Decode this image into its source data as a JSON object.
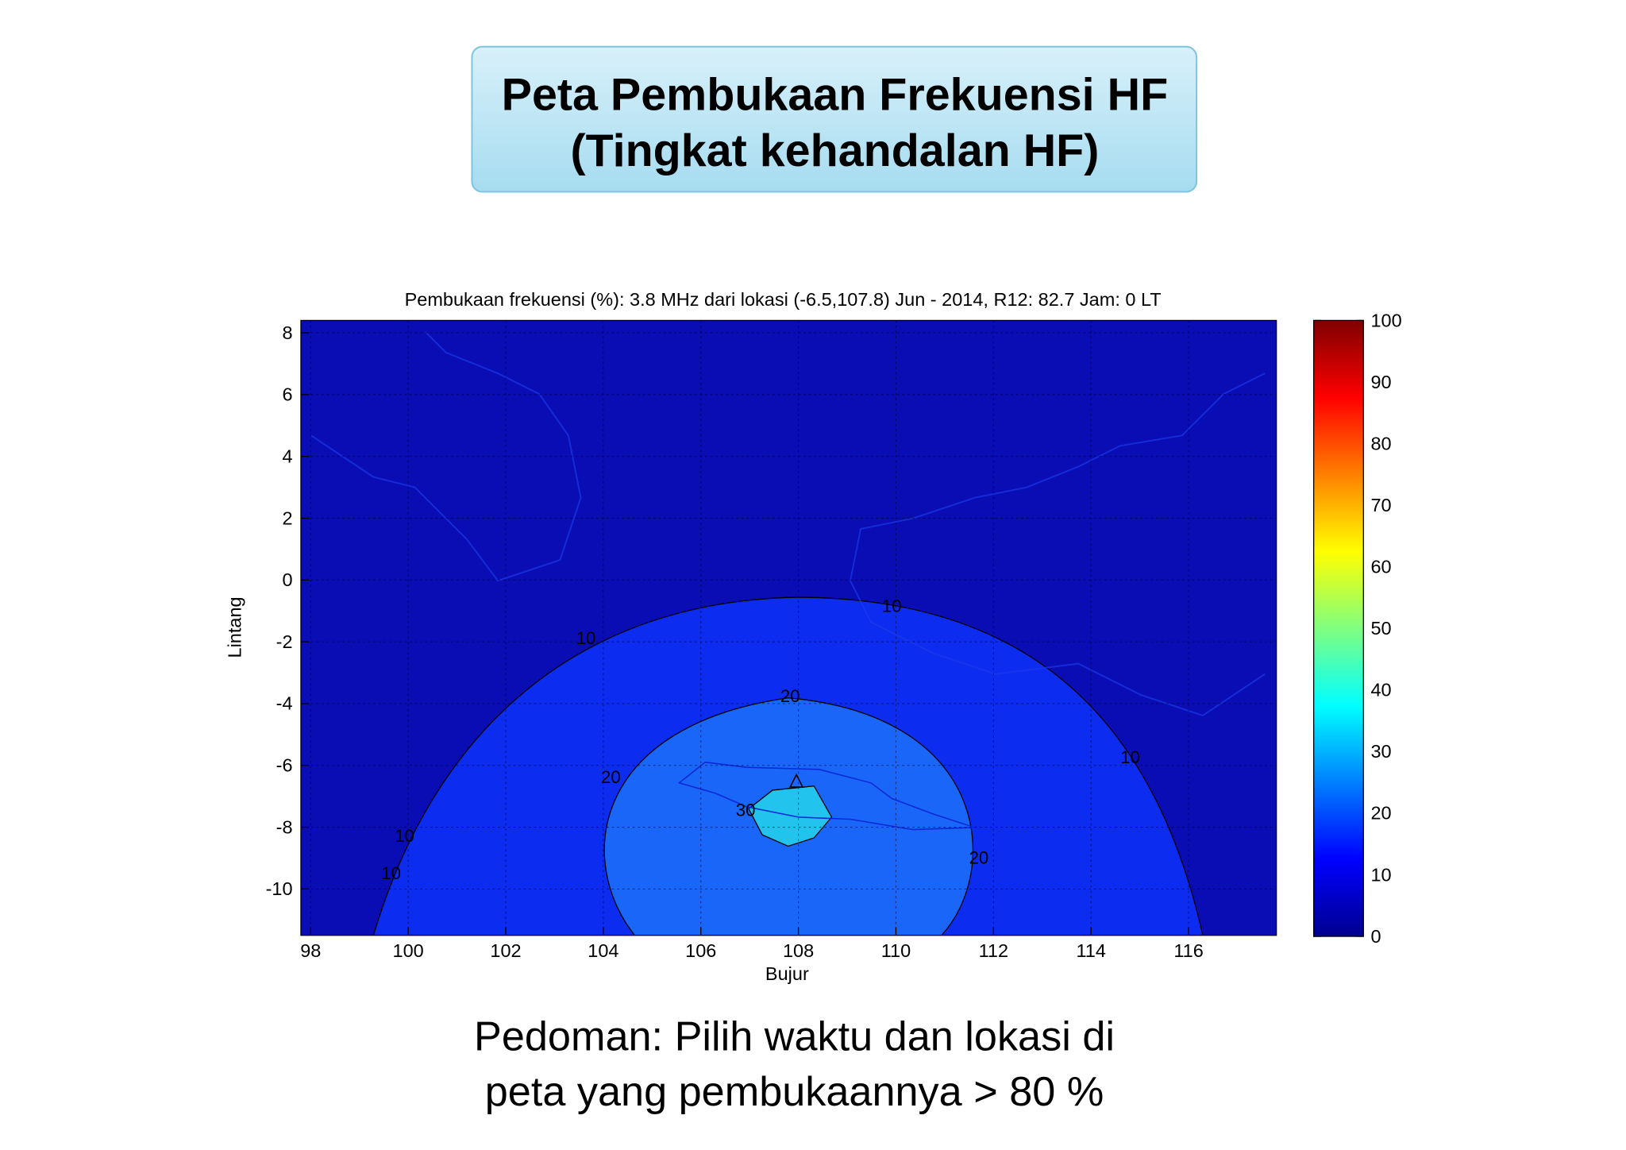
{
  "header": {
    "title_lines": [
      "Peta Pembukaan Frekuensi HF",
      "(Tingkat kehandalan HF)"
    ]
  },
  "chart_data": {
    "type": "contour",
    "title": "Pembukaan frekuensi (%): 3.8 MHz dari lokasi (-6.5,107.8) Jun - 2014, R12: 82.7 Jam: 0 LT",
    "x_label": "Bujur",
    "y_label": "Lintang",
    "xlim": [
      97.8,
      117.8
    ],
    "ylim": [
      -11.5,
      8.4
    ],
    "xticks": [
      98,
      100,
      102,
      104,
      106,
      108,
      110,
      112,
      114,
      116
    ],
    "yticks": [
      -10,
      -8,
      -6,
      -4,
      -2,
      0,
      2,
      4,
      6,
      8
    ],
    "grid": true,
    "background_color": "#0a0cb4",
    "levels": [
      10,
      20,
      30
    ],
    "colors": [
      "#0c2cf0",
      "#1a66f8",
      "#22c4ee"
    ],
    "contour_labels": [
      10,
      10,
      10,
      10,
      10,
      20,
      20,
      20,
      30
    ],
    "colorbar": {
      "clim": [
        0,
        100
      ],
      "ticks": [
        0,
        10,
        20,
        30,
        40,
        50,
        60,
        70,
        80,
        90,
        100
      ]
    }
  },
  "footer": {
    "lines": [
      "Pedoman: Pilih waktu dan lokasi di",
      "peta yang pembukaannya > 80 %"
    ]
  }
}
